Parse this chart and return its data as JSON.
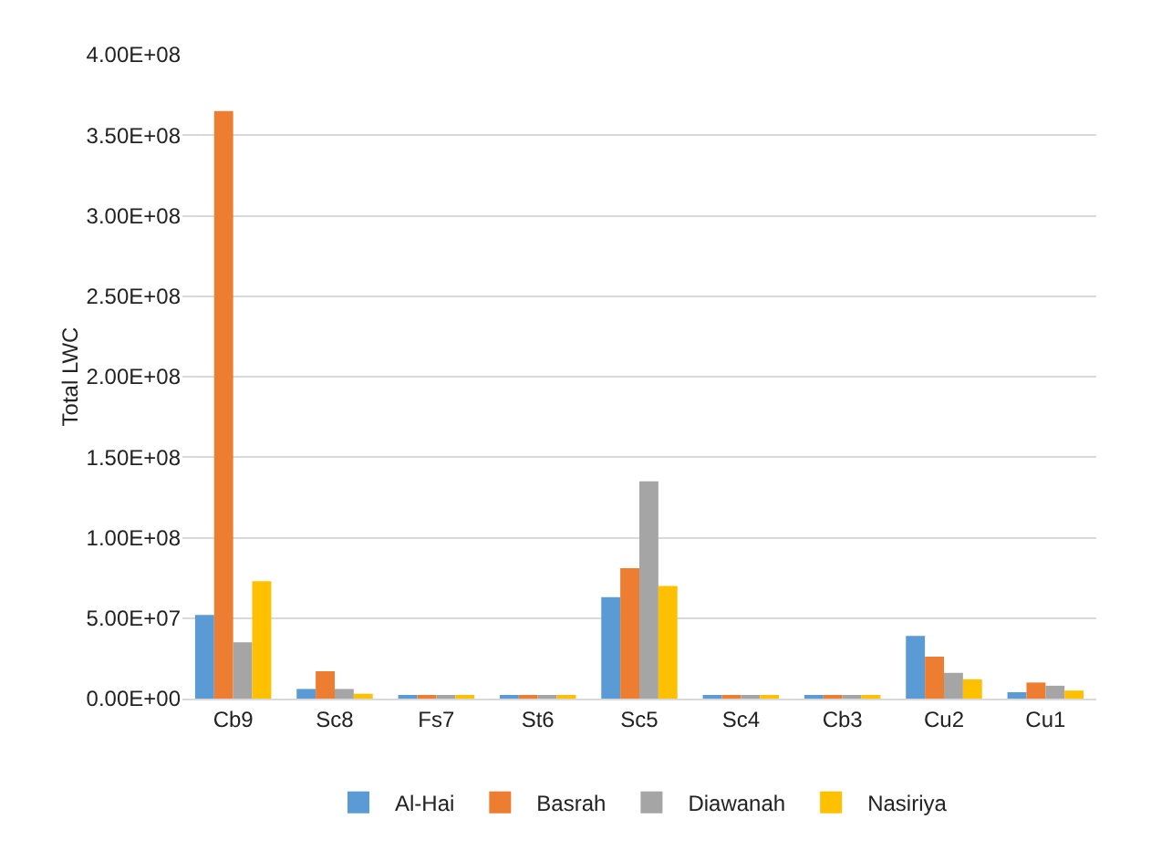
{
  "chart_data": {
    "type": "bar",
    "ylabel": "Total LWC",
    "categories": [
      "Cb9",
      "Sc8",
      "Fs7",
      "St6",
      "Sc5",
      "Sc4",
      "Cb3",
      "Cu2",
      "Cu1"
    ],
    "series": [
      {
        "name": "Al-Hai",
        "color": "#5b9bd5",
        "values": [
          52000000,
          6000000,
          2000000,
          2000000,
          63000000,
          2000000,
          2000000,
          39000000,
          4000000
        ]
      },
      {
        "name": "Basrah",
        "color": "#ed7d31",
        "values": [
          365000000,
          17000000,
          2000000,
          2000000,
          81000000,
          2000000,
          2000000,
          26000000,
          10000000
        ]
      },
      {
        "name": "Diawanah",
        "color": "#a5a5a5",
        "values": [
          35000000,
          6000000,
          2000000,
          2000000,
          135000000,
          2000000,
          2000000,
          16000000,
          8000000
        ]
      },
      {
        "name": "Nasiriya",
        "color": "#ffc000",
        "values": [
          73000000,
          3000000,
          2000000,
          2000000,
          70000000,
          2000000,
          2000000,
          12000000,
          5000000
        ]
      }
    ],
    "ylim": [
      0,
      400000000
    ],
    "yticks": [
      {
        "value": 0,
        "label": "0.00E+00"
      },
      {
        "value": 50000000,
        "label": "5.00E+07"
      },
      {
        "value": 100000000,
        "label": "1.00E+08"
      },
      {
        "value": 150000000,
        "label": "1.50E+08"
      },
      {
        "value": 200000000,
        "label": "2.00E+08"
      },
      {
        "value": 250000000,
        "label": "2.50E+08"
      },
      {
        "value": 300000000,
        "label": "3.00E+08"
      },
      {
        "value": 350000000,
        "label": "3.50E+08"
      },
      {
        "value": 400000000,
        "label": "4.00E+08"
      }
    ],
    "grid": "y",
    "legend": "bottom"
  }
}
